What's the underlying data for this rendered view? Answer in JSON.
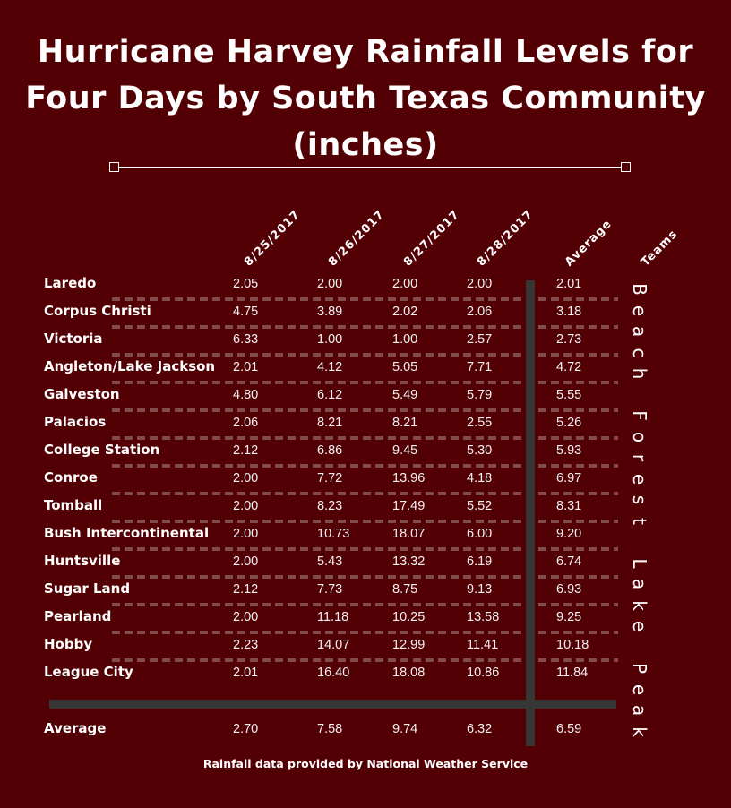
{
  "title": "Hurricane Harvey Rainfall Levels for Four Days by South Texas Community (inches)",
  "footer": "Rainfall data provided by National Weather Service",
  "chart_data": {
    "type": "table",
    "title": "Hurricane Harvey Rainfall Levels for Four Days by South Texas Community (inches)",
    "columns": [
      "8/25/2017",
      "8/26/2017",
      "8/27/2017",
      "8/28/2017",
      "Average",
      "Teams"
    ],
    "rows": [
      {
        "community": "Laredo",
        "values": [
          "2.05",
          "2.00",
          "2.00",
          "2.00"
        ],
        "average": "2.01"
      },
      {
        "community": "Corpus Christi",
        "values": [
          "4.75",
          "3.89",
          "2.02",
          "2.06"
        ],
        "average": "3.18"
      },
      {
        "community": "Victoria",
        "values": [
          "6.33",
          "1.00",
          "1.00",
          "2.57"
        ],
        "average": "2.73"
      },
      {
        "community": "Angleton/Lake Jackson",
        "values": [
          "2.01",
          "4.12",
          "5.05",
          "7.71"
        ],
        "average": "4.72"
      },
      {
        "community": "Galveston",
        "values": [
          "4.80",
          "6.12",
          "5.49",
          "5.79"
        ],
        "average": "5.55"
      },
      {
        "community": "Palacios",
        "values": [
          "2.06",
          "8.21",
          "8.21",
          "2.55"
        ],
        "average": "5.26"
      },
      {
        "community": "College Station",
        "values": [
          "2.12",
          "6.86",
          "9.45",
          "5.30"
        ],
        "average": "5.93"
      },
      {
        "community": "Conroe",
        "values": [
          "2.00",
          "7.72",
          "13.96",
          "4.18"
        ],
        "average": "6.97"
      },
      {
        "community": "Tomball",
        "values": [
          "2.00",
          "8.23",
          "17.49",
          "5.52"
        ],
        "average": "8.31"
      },
      {
        "community": "Bush Intercontinental",
        "values": [
          "2.00",
          "10.73",
          "18.07",
          "6.00"
        ],
        "average": "9.20"
      },
      {
        "community": "Huntsville",
        "values": [
          "2.00",
          "5.43",
          "13.32",
          "6.19"
        ],
        "average": "6.74"
      },
      {
        "community": "Sugar Land",
        "values": [
          "2.12",
          "7.73",
          "8.75",
          "9.13"
        ],
        "average": "6.93"
      },
      {
        "community": "Pearland",
        "values": [
          "2.00",
          "11.18",
          "10.25",
          "13.58"
        ],
        "average": "9.25"
      },
      {
        "community": "Hobby",
        "values": [
          "2.23",
          "14.07",
          "12.99",
          "11.41"
        ],
        "average": "10.18"
      },
      {
        "community": "League City",
        "values": [
          "2.01",
          "16.40",
          "18.08",
          "10.86"
        ],
        "average": "11.84"
      }
    ],
    "average_row": {
      "label": "Average",
      "values": [
        "2.70",
        "7.58",
        "9.74",
        "6.32"
      ],
      "average": "6.59"
    },
    "teams": [
      "Beach",
      "Forest",
      "Lake",
      "Peak"
    ]
  },
  "colors": {
    "background": "#530005",
    "text": "#ffffff",
    "bars": "#363636",
    "dots": "#8a5a5a"
  }
}
